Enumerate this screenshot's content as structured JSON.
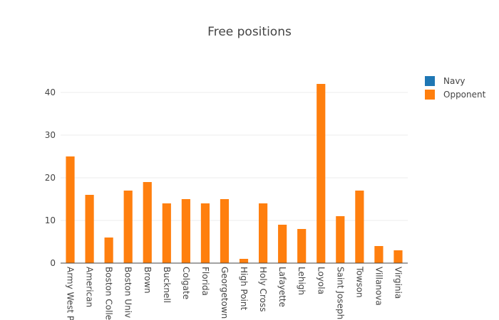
{
  "chart_data": {
    "type": "bar",
    "title": "Free positions",
    "xlabel": "",
    "ylabel": "",
    "ylim": [
      0,
      45
    ],
    "yticks": [
      0,
      10,
      20,
      30,
      40
    ],
    "barmode": "stack",
    "grid": true,
    "legend_position": "top-right",
    "categories": [
      "Army West P",
      "American",
      "Boston Colle",
      "Boston Univ",
      "Brown",
      "Bucknell",
      "Colgate",
      "Florida",
      "Georgetown",
      "High Point",
      "Holy Cross",
      "Lafayette",
      "Lehigh",
      "Loyola",
      "Saint Joseph",
      "Towson",
      "Villanova",
      "Virginia"
    ],
    "series": [
      {
        "name": "Navy",
        "color": "#1f77b4",
        "values": [
          0,
          0,
          0,
          0,
          0,
          0,
          0,
          0,
          0,
          0,
          0,
          0,
          0,
          0,
          0,
          0,
          0,
          0
        ]
      },
      {
        "name": "Opponent",
        "color": "#ff7f0e",
        "values": [
          25,
          16,
          6,
          17,
          19,
          14,
          15,
          14,
          15,
          1,
          14,
          9,
          8,
          42,
          11,
          17,
          4,
          3
        ]
      }
    ]
  }
}
